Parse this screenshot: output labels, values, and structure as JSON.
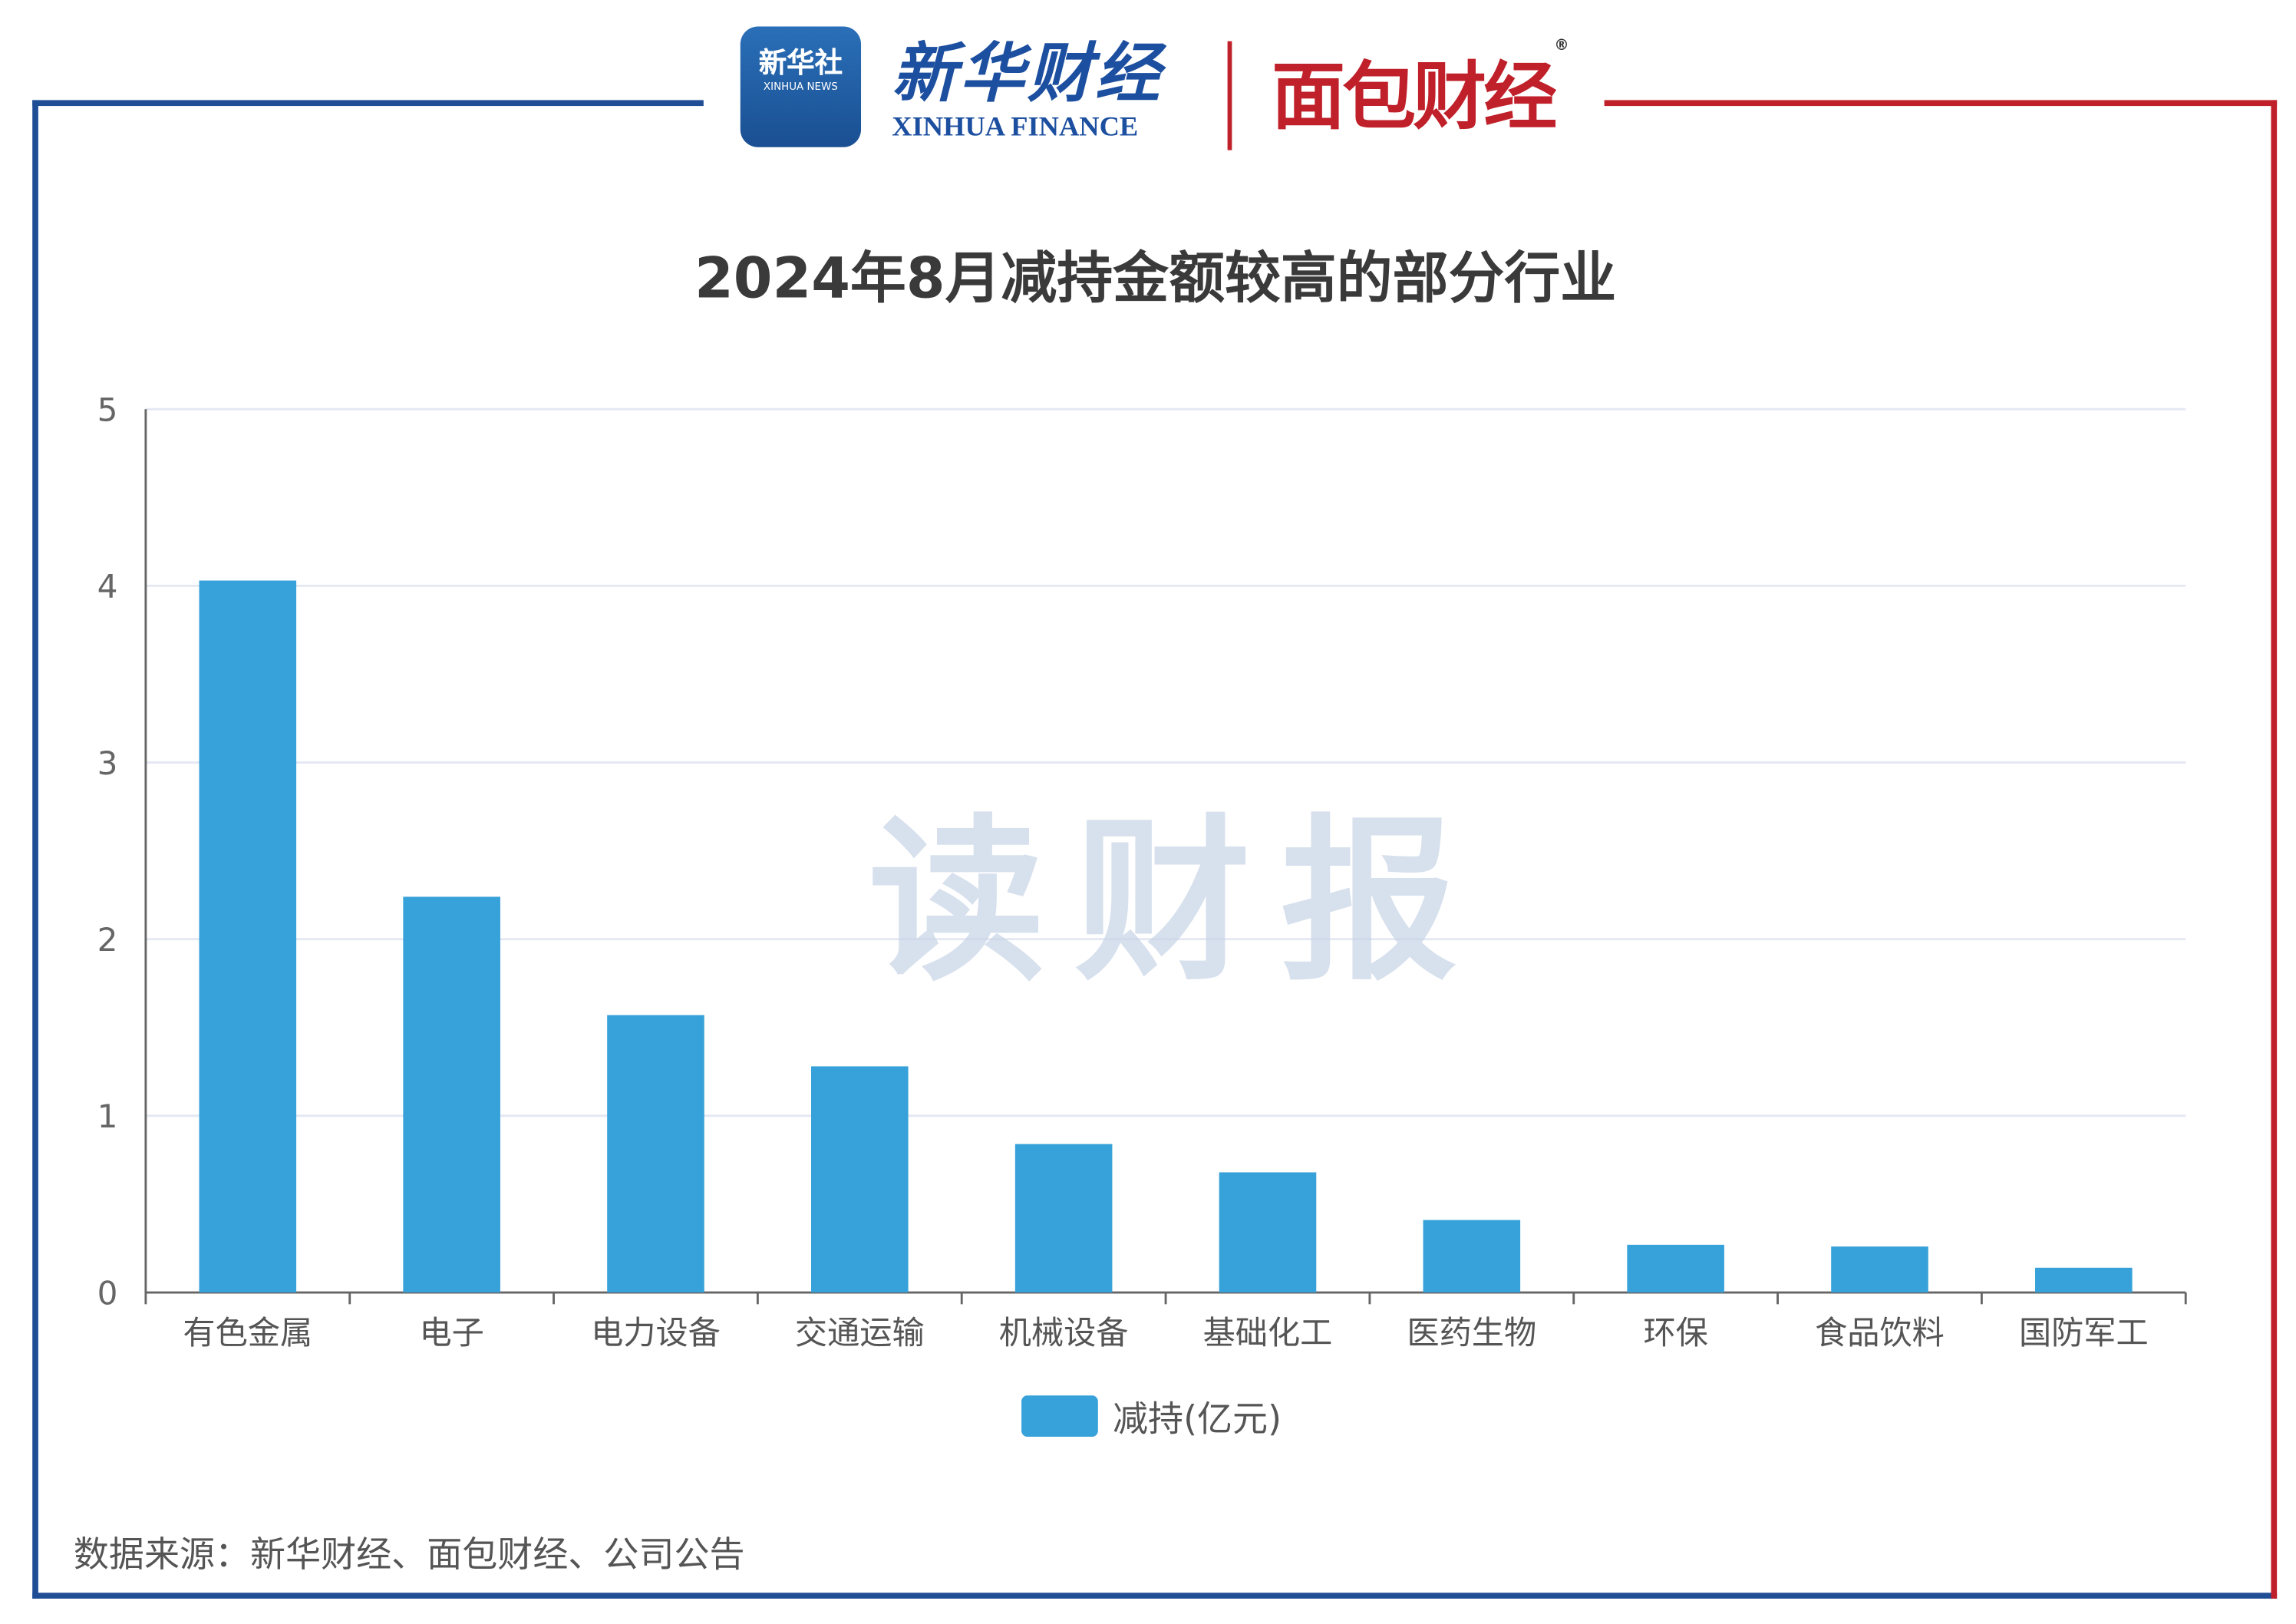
{
  "header": {
    "logo_xinhua_cn": "新华社",
    "logo_xinhua_en": "XINHUA NEWS",
    "logo_xf_cn": "新华财经",
    "logo_xf_en": "XINHUA FINANCE",
    "logo_mb": "面包财经",
    "logo_mb_mark": "®"
  },
  "watermark": "读财报",
  "colors": {
    "bar": "#37a2da",
    "frame_left": "#1f4e96",
    "frame_right": "#c0202a"
  },
  "chart_data": {
    "type": "bar",
    "title": "2024年8月减持金额较高的部分行业",
    "categories": [
      "有色金属",
      "电子",
      "电力设备",
      "交通运输",
      "机械设备",
      "基础化工",
      "医药生物",
      "环保",
      "食品饮料",
      "国防军工"
    ],
    "series": [
      {
        "name": "减持(亿元)",
        "values": [
          4.03,
          2.24,
          1.57,
          1.28,
          0.84,
          0.68,
          0.41,
          0.27,
          0.26,
          0.14
        ]
      }
    ],
    "yticks": [
      "0",
      "1",
      "2",
      "3",
      "4",
      "5"
    ],
    "ylim": [
      0,
      5
    ],
    "grid": true,
    "legend": "bottom-center"
  },
  "source": "数据来源：新华财经、面包财经、公司公告"
}
